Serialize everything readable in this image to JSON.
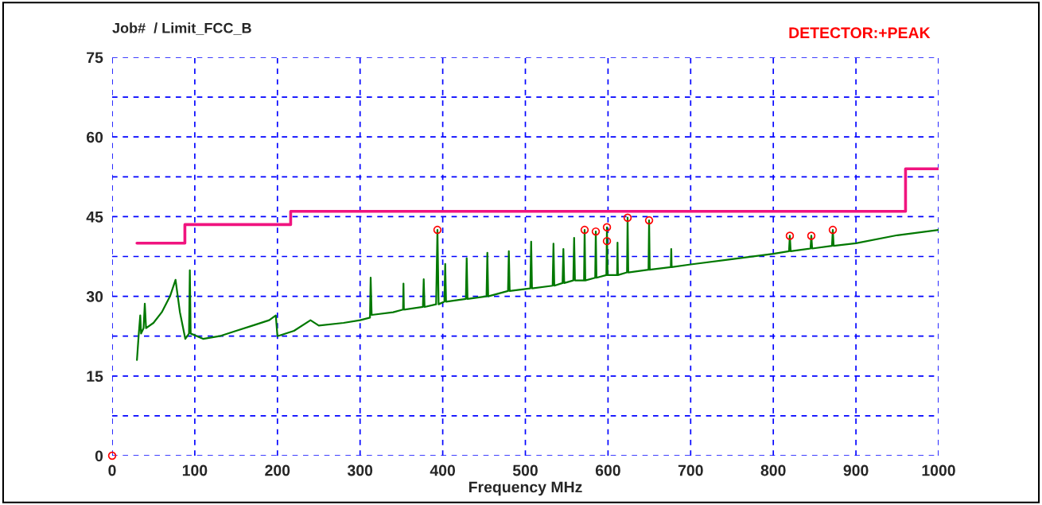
{
  "chart_data": {
    "type": "line",
    "title": "Job#  / Limit_FCC_B",
    "xlabel": "Frequency MHz",
    "annotations": [
      "DETECTOR:+PEAK"
    ],
    "xlim": [
      0,
      1000
    ],
    "ylim": [
      0,
      75
    ],
    "xticks": [
      0,
      100,
      200,
      300,
      400,
      500,
      600,
      700,
      800,
      900,
      1000
    ],
    "yticks": [
      0,
      {
        "value": 7.5,
        "label": null
      },
      15,
      {
        "value": 22.5,
        "label": null
      },
      30,
      {
        "value": 37.5,
        "label": null
      },
      45,
      {
        "value": 52.5,
        "label": null
      },
      60,
      {
        "value": 67.5,
        "label": null
      },
      75
    ],
    "grid": true,
    "legend": false,
    "series": [
      {
        "color": "#007800",
        "marker": "none",
        "line_style": "solid",
        "x": [
          30,
          32,
          34,
          35,
          38,
          39.5,
          41,
          50,
          60,
          70,
          76.7,
          82,
          88.5,
          93,
          94,
          95,
          110,
          130,
          150,
          170,
          190,
          198,
          200,
          220,
          240,
          250,
          280,
          300,
          312,
          312.8,
          314,
          340,
          352,
          352.5,
          353,
          376,
          377,
          378,
          392,
          393.6,
          395,
          402,
          403,
          404,
          428,
          429,
          430,
          453,
          454,
          455,
          479,
          480,
          481,
          506,
          507,
          508,
          533,
          534,
          535,
          545,
          546,
          547,
          558,
          559,
          560,
          571,
          571.7,
          572.5,
          584.5,
          585.2,
          586,
          598,
          598.7,
          599.5,
          611,
          611.5,
          612,
          623,
          623.7,
          624.5,
          649,
          649.7,
          650.5,
          676,
          676.5,
          677,
          700,
          750,
          800,
          819,
          820,
          821,
          845,
          846,
          847,
          871,
          872,
          873,
          900,
          950,
          1000
        ],
        "values": [
          18,
          22.5,
          26.4,
          23,
          24,
          28.6,
          24,
          25,
          27,
          30,
          33.1,
          27,
          22,
          23,
          34.9,
          23,
          22,
          22.5,
          23.5,
          24.5,
          25.5,
          26.4,
          22.5,
          23.5,
          25.5,
          24.5,
          25,
          25.5,
          26,
          33.5,
          26.5,
          27,
          27.5,
          32.4,
          27.5,
          28,
          33.2,
          28,
          28.5,
          42.5,
          28.5,
          29,
          36.1,
          29,
          29.5,
          37.2,
          29.5,
          30,
          38.2,
          30,
          31,
          38.5,
          31,
          31.5,
          40.3,
          31.5,
          32,
          39.9,
          32,
          32.5,
          38.9,
          32.5,
          33,
          41,
          33,
          33,
          42.5,
          33,
          33.5,
          42.2,
          33.5,
          34,
          43.0,
          34,
          34,
          40.1,
          34,
          34.5,
          44.8,
          34.5,
          35,
          44.3,
          35,
          35.5,
          38.9,
          35.5,
          36,
          37,
          38,
          38.5,
          41.4,
          38.5,
          39,
          41.4,
          39,
          39.5,
          42.5,
          39.5,
          40,
          41.5,
          42.5
        ]
      },
      {
        "type": "step",
        "color": "#f0147f",
        "marker": "none",
        "line_style": "solid",
        "x": [
          30,
          88,
          216,
          960,
          1000
        ],
        "values": [
          40,
          43.5,
          46,
          54,
          54
        ]
      },
      {
        "type": "scatter",
        "color": "#ff0000",
        "marker": "circle",
        "x": [
          0,
          393.6,
          571.7,
          585.2,
          598.7,
          598.7,
          623.7,
          649.7,
          820,
          846,
          872
        ],
        "values": [
          0,
          42.5,
          42.5,
          42.2,
          43.0,
          40.4,
          44.8,
          44.3,
          41.4,
          41.4,
          42.5
        ]
      }
    ]
  }
}
